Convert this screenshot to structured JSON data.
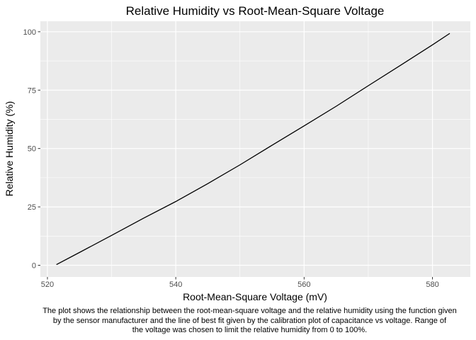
{
  "chart_data": {
    "type": "line",
    "title": "Relative Humidity vs Root-Mean-Square Voltage",
    "xlabel": "Root-Mean-Square Voltage (mV)",
    "ylabel": "Relative Humidity (%)",
    "xlim": [
      518.9,
      585.9
    ],
    "ylim": [
      -5,
      104.5
    ],
    "x_ticks": [
      520,
      540,
      560,
      580
    ],
    "x_tick_labels": [
      "520",
      "540",
      "560",
      "580"
    ],
    "y_ticks": [
      0,
      25,
      50,
      75,
      100
    ],
    "y_tick_labels": [
      "0",
      "25",
      "50",
      "75",
      "100"
    ],
    "grid": true,
    "colors": {
      "panel": "#EBEBEB",
      "grid": "#FFFFFF",
      "line": "#000000"
    },
    "series": [
      {
        "x": [
          521.4,
          525,
          530,
          535,
          540,
          545,
          550,
          555,
          560,
          565,
          570,
          575,
          580,
          582.7
        ],
        "y": [
          0.3,
          5.5,
          12.8,
          20.2,
          27.3,
          35.0,
          43.0,
          51.4,
          59.7,
          68.1,
          76.9,
          85.6,
          94.4,
          99.3
        ]
      }
    ]
  },
  "caption_lines": [
    "The plot shows the relationship between the root-mean-square voltage and the relative humidity using the function given",
    "by the sensor manufacturer and the line of best fit given by the calibration plot of capacitance vs voltage. Range of",
    "the voltage was chosen to limit the relative humidity from 0 to 100%."
  ]
}
